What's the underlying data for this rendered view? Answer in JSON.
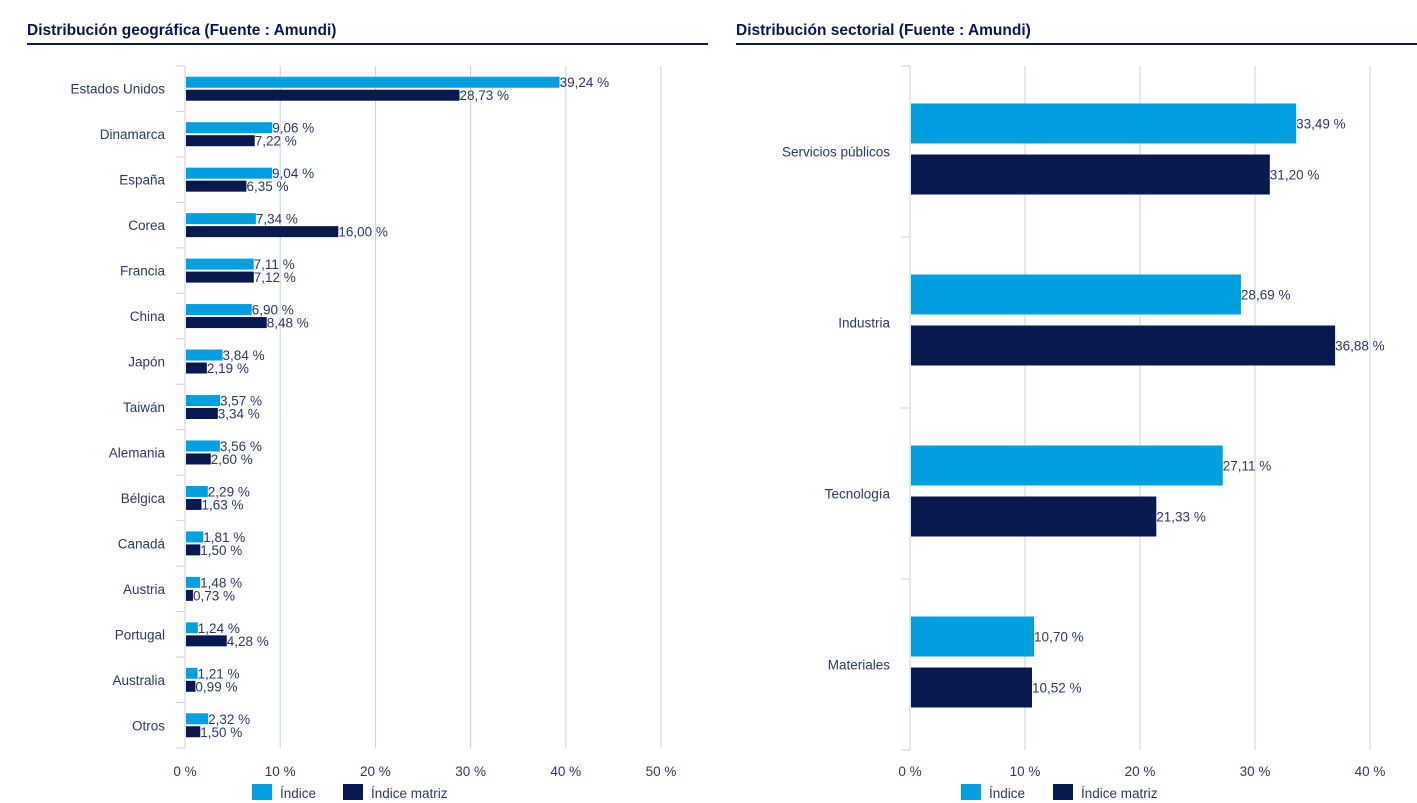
{
  "colors": {
    "indice": "#009fe0",
    "indice_matriz": "#0a1850",
    "grid": "#c8d2e2"
  },
  "chart_data": [
    {
      "type": "bar",
      "orientation": "horizontal",
      "title": "Distribución geográfica (Fuente : Amundi)",
      "categories": [
        "Estados Unidos",
        "Dinamarca",
        "España",
        "Corea",
        "Francia",
        "China",
        "Japón",
        "Taiwán",
        "Alemania",
        "Bélgica",
        "Canadá",
        "Austria",
        "Portugal",
        "Australia",
        "Otros"
      ],
      "series": [
        {
          "name": "Índice",
          "values": [
            39.24,
            9.06,
            9.04,
            7.34,
            7.11,
            6.9,
            3.84,
            3.57,
            3.56,
            2.29,
            1.81,
            1.48,
            1.24,
            1.21,
            2.32
          ],
          "labels": [
            "39,24 %",
            "9,06 %",
            "9,04 %",
            "7,34 %",
            "7,11 %",
            "6,90 %",
            "3,84 %",
            "3,57 %",
            "3,56 %",
            "2,29 %",
            "1,81 %",
            "1,48 %",
            "1,24 %",
            "1,21 %",
            "2,32 %"
          ]
        },
        {
          "name": "Índice matriz",
          "values": [
            28.73,
            7.22,
            6.35,
            16.0,
            7.12,
            8.48,
            2.19,
            3.34,
            2.6,
            1.63,
            1.5,
            0.73,
            4.28,
            0.99,
            1.5
          ],
          "labels": [
            "28,73 %",
            "7,22 %",
            "6,35 %",
            "16,00 %",
            "7,12 %",
            "8,48 %",
            "2,19 %",
            "3,34 %",
            "2,60 %",
            "1,63 %",
            "1,50 %",
            "0,73 %",
            "4,28 %",
            "0,99 %",
            "1,50 %"
          ]
        }
      ],
      "xlim": [
        0,
        50
      ],
      "xticks": [
        "0 %",
        "10 %",
        "20 %",
        "30 %",
        "40 %",
        "50 %"
      ],
      "grid": true,
      "legend": "bottom"
    },
    {
      "type": "bar",
      "orientation": "horizontal",
      "title": "Distribución sectorial (Fuente : Amundi)",
      "categories": [
        "Servicios públicos",
        "Industria",
        "Tecnología",
        "Materiales"
      ],
      "series": [
        {
          "name": "Índice",
          "values": [
            33.49,
            28.69,
            27.11,
            10.7
          ],
          "labels": [
            "33,49 %",
            "28,69 %",
            "27,11 %",
            "10,70 %"
          ]
        },
        {
          "name": "Índice matriz",
          "values": [
            31.2,
            36.88,
            21.33,
            10.52
          ],
          "labels": [
            "31,20 %",
            "36,88 %",
            "21,33 %",
            "10,52 %"
          ]
        }
      ],
      "xlim": [
        0,
        40
      ],
      "xticks": [
        "0 %",
        "10 %",
        "20 %",
        "30 %",
        "40 %"
      ],
      "grid": true,
      "legend": "bottom"
    }
  ]
}
